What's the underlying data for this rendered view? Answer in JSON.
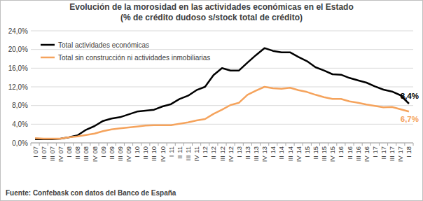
{
  "chart_data": {
    "type": "line",
    "title": "Evolución de la morosidad en las actividades económicas en el Estado",
    "subtitle": "(% de crédito dudoso s/stock total de crédito)",
    "source": "Fuente: Confebask con datos del Banco de España",
    "categories": [
      "I 07",
      "II 07",
      "III 07",
      "IV 07",
      "I 08",
      "II 08",
      "III 08",
      "IV 08",
      "I 09",
      "II 09",
      "III 09",
      "IV 09",
      "I 10",
      "II 10",
      "III 10",
      "IV 10",
      "I 11",
      "II 11",
      "III 11",
      "IV 11",
      "I 12",
      "II 12",
      "III 12",
      "IV 12",
      "I 13",
      "II 13",
      "III 13",
      "IV 13",
      "I 14",
      "II 14",
      "III 14",
      "IV 14",
      "I 15",
      "II 15",
      "III 15",
      "IV 15",
      "I 16",
      "II 16",
      "III 16",
      "IV 16",
      "I 17",
      "II 17",
      "III 17",
      "IV 17",
      "I 18"
    ],
    "series": [
      {
        "name": "Total actividades económicas",
        "color": "#000000",
        "values": [
          0.8,
          0.8,
          0.8,
          0.9,
          1.2,
          1.6,
          2.8,
          3.6,
          4.7,
          5.2,
          5.5,
          6.1,
          6.7,
          6.9,
          7.1,
          7.8,
          8.3,
          9.4,
          10.1,
          11.3,
          12.0,
          14.5,
          16.0,
          15.5,
          15.5,
          17.2,
          18.8,
          20.3,
          19.7,
          19.4,
          19.4,
          18.4,
          17.5,
          16.2,
          15.5,
          14.7,
          14.6,
          13.9,
          13.4,
          12.9,
          12.1,
          11.4,
          11.0,
          10.2,
          8.4
        ],
        "value_labels": [
          null,
          null,
          null,
          null,
          null,
          null,
          null,
          null,
          null,
          null,
          null,
          null,
          null,
          null,
          null,
          null,
          null,
          null,
          null,
          null,
          null,
          null,
          null,
          null,
          null,
          null,
          null,
          null,
          null,
          null,
          null,
          null,
          null,
          null,
          null,
          null,
          null,
          null,
          null,
          null,
          null,
          null,
          null,
          null,
          "8,4%"
        ]
      },
      {
        "name": "Total sin construcción ni actividades inmobiliarias",
        "color": "#f5a35c",
        "values": [
          1.0,
          0.9,
          0.9,
          0.9,
          1.2,
          1.4,
          1.7,
          2.0,
          2.5,
          2.9,
          3.1,
          3.3,
          3.5,
          3.7,
          3.8,
          3.8,
          3.8,
          4.1,
          4.4,
          4.8,
          5.1,
          6.2,
          7.1,
          8.1,
          8.6,
          10.3,
          11.2,
          12.0,
          11.7,
          11.6,
          11.8,
          11.3,
          10.9,
          10.3,
          9.8,
          9.4,
          9.4,
          8.9,
          8.6,
          8.2,
          7.9,
          7.6,
          7.7,
          7.2,
          6.7
        ],
        "value_labels": [
          null,
          null,
          null,
          null,
          null,
          null,
          null,
          null,
          null,
          null,
          null,
          null,
          null,
          null,
          null,
          null,
          null,
          null,
          null,
          null,
          null,
          null,
          null,
          null,
          null,
          null,
          null,
          null,
          null,
          null,
          null,
          null,
          null,
          null,
          null,
          null,
          null,
          null,
          null,
          null,
          null,
          null,
          null,
          null,
          "6,7%"
        ]
      }
    ],
    "ylim": [
      0,
      24
    ],
    "yticks": [
      {
        "value": 0,
        "label": "0,0%"
      },
      {
        "value": 4,
        "label": "4,0%"
      },
      {
        "value": 8,
        "label": "8,0%"
      },
      {
        "value": 12,
        "label": "12,0%"
      },
      {
        "value": 16,
        "label": "16,0%"
      },
      {
        "value": 20,
        "label": "20,0%"
      },
      {
        "value": 24,
        "label": "24,0%"
      }
    ],
    "grid": true,
    "legend": "upper left"
  }
}
